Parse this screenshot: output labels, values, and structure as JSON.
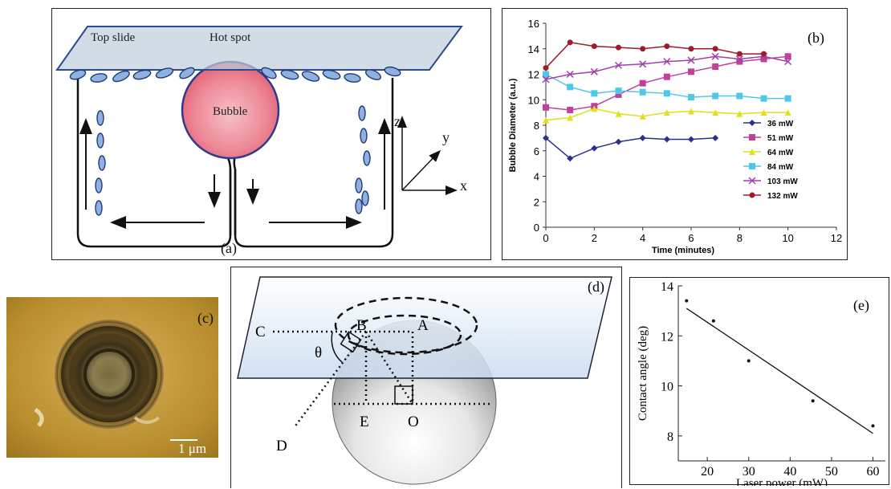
{
  "panel_a": {
    "label": "(a)",
    "top_slide": "Top slide",
    "hot_spot": "Hot spot",
    "bubble": "Bubble",
    "axis_z": "z",
    "axis_y": "y",
    "axis_x": "x"
  },
  "panel_b": {
    "label": "(b)",
    "chart_data": {
      "type": "line",
      "xlabel": "Time (minutes)",
      "ylabel": "Bubble Diameter (a.u.)",
      "xlim": [
        0,
        12
      ],
      "ylim": [
        0,
        16
      ],
      "xticks": [
        0,
        2,
        4,
        6,
        8,
        10,
        12
      ],
      "yticks": [
        0,
        2,
        4,
        6,
        8,
        10,
        12,
        14,
        16
      ],
      "legend_position": "right",
      "series": [
        {
          "name": "36 mW",
          "color": "#2b2f8f",
          "marker": "diamond",
          "x": [
            0,
            1,
            2,
            3,
            4,
            5,
            6,
            7
          ],
          "y": [
            7.0,
            5.4,
            6.2,
            6.7,
            7.0,
            6.9,
            6.9,
            7.0
          ]
        },
        {
          "name": "51 mW",
          "color": "#c0409a",
          "marker": "square",
          "x": [
            0,
            1,
            2,
            3,
            4,
            5,
            6,
            7,
            8,
            9,
            10
          ],
          "y": [
            9.4,
            9.2,
            9.5,
            10.4,
            11.3,
            11.8,
            12.2,
            12.6,
            13.0,
            13.2,
            13.4
          ]
        },
        {
          "name": "64 mW",
          "color": "#e0e020",
          "marker": "triangle",
          "x": [
            0,
            1,
            2,
            3,
            4,
            5,
            6,
            7,
            8,
            9,
            10
          ],
          "y": [
            8.4,
            8.6,
            9.3,
            8.9,
            8.7,
            9.0,
            9.1,
            9.0,
            8.9,
            9.0,
            9.0
          ]
        },
        {
          "name": "84 mW",
          "color": "#4fc8e8",
          "marker": "square",
          "x": [
            0,
            1,
            2,
            3,
            4,
            5,
            6,
            7,
            8,
            9,
            10
          ],
          "y": [
            12.0,
            11.0,
            10.5,
            10.7,
            10.6,
            10.5,
            10.2,
            10.3,
            10.3,
            10.1,
            10.1
          ]
        },
        {
          "name": "103 mW",
          "color": "#a040a8",
          "marker": "x",
          "x": [
            0,
            1,
            2,
            3,
            4,
            5,
            6,
            7,
            8,
            9,
            10
          ],
          "y": [
            11.6,
            12.0,
            12.2,
            12.7,
            12.8,
            13.0,
            13.1,
            13.4,
            13.2,
            13.4,
            13.0
          ]
        },
        {
          "name": "132 mW",
          "color": "#9c1c2c",
          "marker": "circle",
          "x": [
            0,
            1,
            2,
            3,
            4,
            5,
            6,
            7,
            8,
            9
          ],
          "y": [
            12.5,
            14.5,
            14.2,
            14.1,
            14.0,
            14.2,
            14.0,
            14.0,
            13.6,
            13.6
          ]
        }
      ]
    }
  },
  "panel_c": {
    "label": "(c)",
    "scale": "1 μm"
  },
  "panel_d": {
    "label": "(d)",
    "points": {
      "A": "A",
      "B": "B",
      "C": "C",
      "D": "D",
      "E": "E",
      "O": "O"
    },
    "theta": "θ"
  },
  "panel_e": {
    "label": "(e)",
    "chart_data": {
      "type": "scatter",
      "xlabel": "Laser power (mW)",
      "ylabel": "Contact angle (deg)",
      "xlim": [
        13,
        63
      ],
      "ylim": [
        7,
        14
      ],
      "xticks": [
        20,
        30,
        40,
        50,
        60
      ],
      "yticks": [
        8,
        10,
        12,
        14
      ],
      "points": {
        "x": [
          15,
          21.5,
          30,
          45.5,
          60
        ],
        "y": [
          13.4,
          12.6,
          11.0,
          9.4,
          8.4
        ]
      },
      "fit_line": {
        "x": [
          15,
          60
        ],
        "y": [
          13.1,
          8.1
        ]
      }
    }
  }
}
